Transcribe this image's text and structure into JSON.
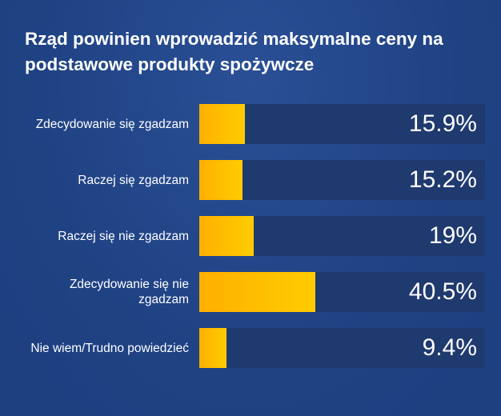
{
  "chart_data": {
    "type": "bar",
    "orientation": "horizontal",
    "title": "Rząd powinien wprowadzić maksymalne ceny na podstawowe produkty spożywcze",
    "categories": [
      "Zdecydowanie się zgadzam",
      "Raczej się zgadzam",
      "Raczej się nie zgadzam",
      "Zdecydowanie się nie zgadzam",
      "Nie wiem/Trudno powiedzieć"
    ],
    "values": [
      15.9,
      15.2,
      19,
      40.5,
      9.4
    ],
    "value_labels": [
      "15.9%",
      "15.2%",
      "19%",
      "40.5%",
      "9.4%"
    ],
    "xlim": [
      0,
      100
    ],
    "grid": false,
    "colors": {
      "bar": "#ffc000",
      "track": "#1f3a6f",
      "background": "#1f4283",
      "text": "#ffffff"
    }
  }
}
